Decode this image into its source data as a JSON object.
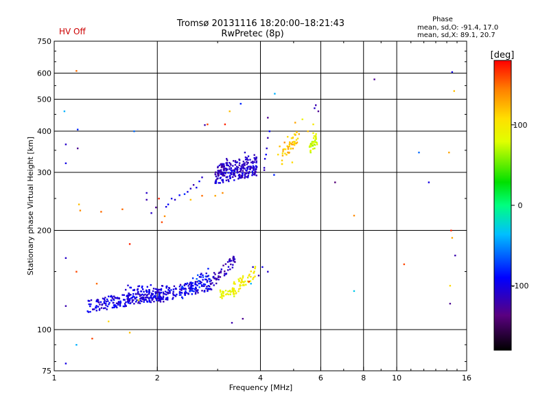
{
  "chart_data": {
    "type": "scatter",
    "title": "Tromsø 20131116 18:20:00–18:21:43",
    "subtitle": "RwPretec (8p)",
    "status": "HV Off",
    "phase_header": "Phase",
    "phase_lines": [
      "mean, sd,O: -91.4, 17.0",
      "mean, sd,X:  89.1, 20.7"
    ],
    "xlabel": "Frequency [MHz]",
    "ylabel": "Stationary phase Virtual Height [km]",
    "x_scale": "log",
    "y_scale": "log",
    "xlim": [
      1,
      16
    ],
    "ylim": [
      75,
      750
    ],
    "x_ticks": [
      {
        "v": 1,
        "label": "1"
      },
      {
        "v": 2,
        "label": "2"
      },
      {
        "v": 4,
        "label": "4"
      },
      {
        "v": 6,
        "label": "6"
      },
      {
        "v": 8,
        "label": "8"
      },
      {
        "v": 10,
        "label": "10"
      },
      {
        "v": 16,
        "label": "16"
      }
    ],
    "y_ticks": [
      {
        "v": 75,
        "label": "75"
      },
      {
        "v": 100,
        "label": "100"
      },
      {
        "v": 200,
        "label": "200"
      },
      {
        "v": 300,
        "label": "300"
      },
      {
        "v": 400,
        "label": "400"
      },
      {
        "v": 500,
        "label": "500"
      },
      {
        "v": 600,
        "label": "600"
      },
      {
        "v": 750,
        "label": "750"
      }
    ],
    "grid": true,
    "colorbar": {
      "label": "[deg]",
      "range": [
        -180,
        180
      ],
      "ticks": [
        {
          "v": 100,
          "label": "100"
        },
        {
          "v": 0,
          "label": "0"
        },
        {
          "v": -100,
          "label": "-100"
        }
      ]
    },
    "points": [
      [
        1.07,
        460,
        -40
      ],
      [
        1.08,
        365,
        -110
      ],
      [
        1.08,
        320,
        -100
      ],
      [
        1.08,
        165,
        -110
      ],
      [
        1.08,
        118,
        -120
      ],
      [
        1.08,
        79,
        -100
      ],
      [
        1.16,
        610,
        150
      ],
      [
        1.17,
        405,
        -80
      ],
      [
        1.17,
        355,
        -130
      ],
      [
        1.16,
        150,
        160
      ],
      [
        1.16,
        90,
        -40
      ],
      [
        1.18,
        240,
        120
      ],
      [
        1.19,
        230,
        140
      ],
      [
        1.37,
        228,
        150
      ],
      [
        1.33,
        138,
        150
      ],
      [
        1.29,
        94,
        160
      ],
      [
        1.44,
        106,
        110
      ],
      [
        1.58,
        232,
        150
      ],
      [
        1.66,
        98,
        120
      ],
      [
        1.66,
        182,
        170
      ],
      [
        1.71,
        400,
        -60
      ],
      [
        1.76,
        123,
        90
      ],
      [
        1.86,
        248,
        -120
      ],
      [
        1.86,
        260,
        -110
      ],
      [
        1.92,
        226,
        -110
      ],
      [
        2.02,
        250,
        170
      ],
      [
        1.98,
        235,
        -130
      ],
      [
        2.06,
        212,
        160
      ],
      [
        2.1,
        221,
        140
      ],
      [
        2.12,
        236,
        -100
      ],
      [
        2.15,
        240,
        -90
      ],
      [
        2.2,
        250,
        -100
      ],
      [
        2.25,
        248,
        -110
      ],
      [
        2.32,
        256,
        -90
      ],
      [
        2.4,
        258,
        -80
      ],
      [
        2.45,
        262,
        -100
      ],
      [
        2.5,
        268,
        -110
      ],
      [
        2.55,
        275,
        -120
      ],
      [
        2.6,
        270,
        -100
      ],
      [
        2.65,
        282,
        -90
      ],
      [
        2.7,
        290,
        -110
      ],
      [
        2.5,
        248,
        120
      ],
      [
        2.7,
        255,
        150
      ],
      [
        2.8,
        420,
        160
      ],
      [
        2.75,
        418,
        -120
      ],
      [
        2.95,
        255,
        130
      ],
      [
        3.1,
        260,
        140
      ],
      [
        3.15,
        420,
        170
      ],
      [
        3.25,
        460,
        120
      ],
      [
        3.3,
        105,
        -120
      ],
      [
        3.5,
        485,
        -80
      ],
      [
        3.55,
        108,
        -130
      ],
      [
        3.6,
        345,
        -110
      ],
      [
        3.7,
        140,
        170
      ],
      [
        3.75,
        138,
        -40
      ],
      [
        4.1,
        305,
        -120
      ],
      [
        4.1,
        310,
        -110
      ],
      [
        4.12,
        330,
        -100
      ],
      [
        4.15,
        340,
        -90
      ],
      [
        4.17,
        355,
        -110
      ],
      [
        4.2,
        382,
        -120
      ],
      [
        4.25,
        400,
        -90
      ],
      [
        4.2,
        440,
        -130
      ],
      [
        4.38,
        295,
        -80
      ],
      [
        4.4,
        520,
        -40
      ],
      [
        4.5,
        340,
        110
      ],
      [
        4.55,
        360,
        120
      ],
      [
        4.7,
        370,
        140
      ],
      [
        4.8,
        385,
        110
      ],
      [
        4.85,
        345,
        130
      ],
      [
        4.95,
        322,
        110
      ],
      [
        5.05,
        425,
        130
      ],
      [
        5.1,
        398,
        120
      ],
      [
        5.3,
        435,
        90
      ],
      [
        5.5,
        400,
        120
      ],
      [
        5.7,
        420,
        100
      ],
      [
        5.7,
        395,
        90
      ],
      [
        5.75,
        470,
        -110
      ],
      [
        5.8,
        480,
        -120
      ],
      [
        5.9,
        460,
        -130
      ],
      [
        5.7,
        370,
        80
      ],
      [
        5.75,
        355,
        70
      ],
      [
        5.8,
        380,
        90
      ],
      [
        5.85,
        365,
        85
      ],
      [
        5.6,
        350,
        95
      ],
      [
        6.6,
        280,
        -140
      ],
      [
        7.5,
        222,
        140
      ],
      [
        7.5,
        131,
        -30
      ],
      [
        8.6,
        575,
        -130
      ],
      [
        10.5,
        158,
        160
      ],
      [
        11.6,
        345,
        -60
      ],
      [
        12.4,
        280,
        -100
      ],
      [
        14.5,
        605,
        -100
      ],
      [
        14.2,
        345,
        130
      ],
      [
        14.7,
        530,
        120
      ],
      [
        14.4,
        200,
        170
      ],
      [
        14.5,
        190,
        130
      ],
      [
        14.8,
        168,
        -120
      ],
      [
        14.3,
        136,
        110
      ],
      [
        14.3,
        120,
        -130
      ],
      [
        3.8,
        155,
        -110
      ],
      [
        4.05,
        155,
        -100
      ],
      [
        4.2,
        150,
        -110
      ],
      [
        3.95,
        146,
        -120
      ]
    ],
    "clusters": [
      {
        "f0": 1.25,
        "f1": 2.05,
        "h0": 118,
        "h1": 128,
        "n": 220,
        "p0": -120,
        "p1": -85,
        "jit": 0.045,
        "seed": 1
      },
      {
        "f0": 1.6,
        "f1": 2.25,
        "h0": 130,
        "h1": 130,
        "n": 70,
        "p0": -115,
        "p1": -90,
        "jit": 0.05,
        "seed": 2
      },
      {
        "f0": 2.0,
        "f1": 2.9,
        "h0": 126,
        "h1": 138,
        "n": 130,
        "p0": -120,
        "p1": -80,
        "jit": 0.045,
        "seed": 3
      },
      {
        "f0": 2.35,
        "f1": 2.85,
        "h0": 130,
        "h1": 148,
        "n": 45,
        "p0": -110,
        "p1": -60,
        "jit": 0.05,
        "seed": 4
      },
      {
        "f0": 2.85,
        "f1": 3.4,
        "h0": 138,
        "h1": 165,
        "n": 55,
        "p0": -130,
        "p1": -100,
        "jit": 0.05,
        "seed": 5
      },
      {
        "f0": 3.05,
        "f1": 3.35,
        "h0": 128,
        "h1": 130,
        "n": 30,
        "p0": 75,
        "p1": 100,
        "jit": 0.03,
        "seed": 6
      },
      {
        "f0": 3.3,
        "f1": 3.9,
        "h0": 132,
        "h1": 150,
        "n": 55,
        "p0": 85,
        "p1": 110,
        "jit": 0.045,
        "seed": 7
      },
      {
        "f0": 2.95,
        "f1": 3.9,
        "h0": 288,
        "h1": 305,
        "n": 150,
        "p0": -125,
        "p1": -90,
        "jit": 0.04,
        "seed": 8
      },
      {
        "f0": 3.0,
        "f1": 3.9,
        "h0": 305,
        "h1": 330,
        "n": 90,
        "p0": -120,
        "p1": -100,
        "jit": 0.035,
        "seed": 9
      },
      {
        "f0": 2.95,
        "f1": 3.2,
        "h0": 290,
        "h1": 318,
        "n": 30,
        "p0": -130,
        "p1": -110,
        "jit": 0.05,
        "seed": 10
      },
      {
        "f0": 4.6,
        "f1": 5.2,
        "h0": 330,
        "h1": 395,
        "n": 45,
        "p0": 100,
        "p1": 135,
        "jit": 0.05,
        "seed": 11
      },
      {
        "f0": 5.55,
        "f1": 5.85,
        "h0": 350,
        "h1": 385,
        "n": 30,
        "p0": 60,
        "p1": 95,
        "jit": 0.04,
        "seed": 12
      }
    ]
  }
}
